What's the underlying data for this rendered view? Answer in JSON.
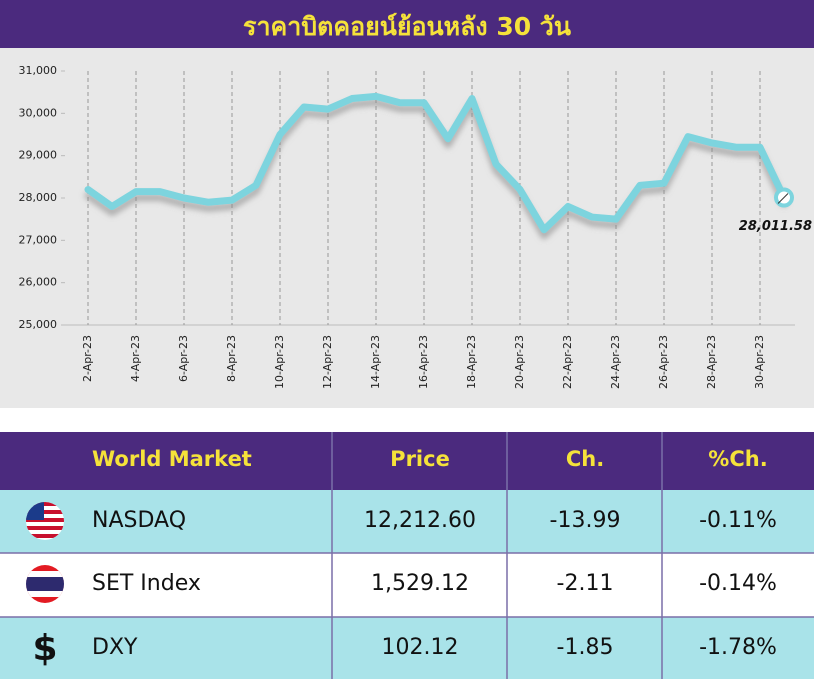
{
  "chart_data": {
    "type": "line",
    "title": "ราคาบิตคอยน์ย้อนหลัง 30 วัน",
    "categories": [
      "2-Apr-23",
      null,
      "4-Apr-23",
      null,
      "6-Apr-23",
      null,
      "8-Apr-23",
      null,
      "10-Apr-23",
      null,
      "12-Apr-23",
      null,
      "14-Apr-23",
      null,
      "16-Apr-23",
      null,
      "18-Apr-23",
      null,
      "20-Apr-23",
      null,
      "22-Apr-23",
      null,
      "24-Apr-23",
      null,
      "26-Apr-23",
      null,
      "28-Apr-23",
      null,
      "30-Apr-23",
      null
    ],
    "values": [
      28200,
      27800,
      28150,
      28150,
      28000,
      27900,
      27950,
      28300,
      29500,
      30150,
      30100,
      30350,
      30400,
      30250,
      30250,
      29400,
      30350,
      28800,
      28200,
      27250,
      27800,
      27550,
      27500,
      28300,
      28350,
      29450,
      29300,
      29200,
      29200,
      28011.58
    ],
    "value_labels": [
      null,
      null,
      null,
      null,
      null,
      null,
      null,
      null,
      null,
      null,
      null,
      null,
      null,
      null,
      null,
      null,
      null,
      null,
      null,
      null,
      null,
      null,
      null,
      null,
      null,
      null,
      null,
      null,
      null,
      "28,011.58"
    ],
    "color": "#7dd4de",
    "ylim": [
      25000,
      31000
    ],
    "yticks": [
      {
        "value": 25000,
        "label": "25,000"
      },
      {
        "value": 26000,
        "label": "26,000"
      },
      {
        "value": 27000,
        "label": "27,000"
      },
      {
        "value": 28000,
        "label": "28,000"
      },
      {
        "value": 29000,
        "label": "29,000"
      },
      {
        "value": 30000,
        "label": "30,000"
      },
      {
        "value": 31000,
        "label": "31,000"
      }
    ],
    "grid": true
  },
  "table": {
    "header": [
      "World Market",
      "Price",
      "Ch.",
      "%Ch."
    ],
    "rows": [
      [
        "NASDAQ",
        "12,212.60",
        "-13.99",
        "-0.11%"
      ],
      [
        "SET Index",
        "1,529.12",
        "-2.11",
        "-0.14%"
      ],
      [
        "DXY",
        "102.12",
        "-1.85",
        "-1.78%"
      ]
    ],
    "dxy_symbol": "$"
  }
}
